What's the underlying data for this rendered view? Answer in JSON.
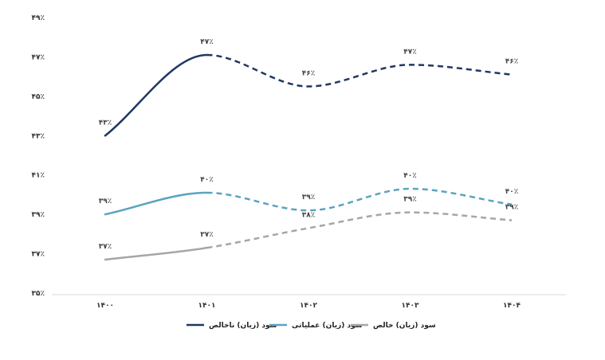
{
  "chart_data": {
    "type": "line",
    "title": "",
    "xlabel": "",
    "ylabel": "",
    "categories": [
      "۱۴۰۰",
      "۱۴۰۱",
      "۱۴۰۲",
      "۱۴۰۳",
      "۱۴۰۴"
    ],
    "ylim": [
      35,
      49
    ],
    "yticks": [
      35,
      37,
      39,
      41,
      43,
      45,
      47,
      49
    ],
    "ytick_labels": [
      "۳۵٪",
      "۳۷٪",
      "۳۹٪",
      "۴۱٪",
      "۴۳٪",
      "۴۵٪",
      "۴۷٪",
      "۴۹٪"
    ],
    "grid": false,
    "legend_position": "bottom",
    "series": [
      {
        "name": "سود (زیان) ناخالص",
        "color": "#1f3864",
        "values": [
          43.0,
          47.1,
          45.5,
          46.6,
          46.1
        ],
        "labels": [
          "۴۳٪",
          "۴۷٪",
          "۴۶٪",
          "۴۷٪",
          "۴۶٪"
        ],
        "solid_until_index": 1
      },
      {
        "name": "سود (زیان) عملیاتی",
        "color": "#5ba3c0",
        "values": [
          39.0,
          40.1,
          39.2,
          40.3,
          39.5
        ],
        "labels": [
          "۳۹٪",
          "۴۰٪",
          "۳۹٪",
          "۴۰٪",
          "۴۰٪"
        ],
        "solid_until_index": 1
      },
      {
        "name": "سود (زیان) خالص",
        "color": "#a6a6a6",
        "values": [
          36.7,
          37.3,
          38.3,
          39.1,
          38.7
        ],
        "labels": [
          "۳۷٪",
          "۳۷٪",
          "۳۸٪",
          "۳۹٪",
          "۳۹٪"
        ],
        "solid_until_index": 1
      }
    ]
  }
}
